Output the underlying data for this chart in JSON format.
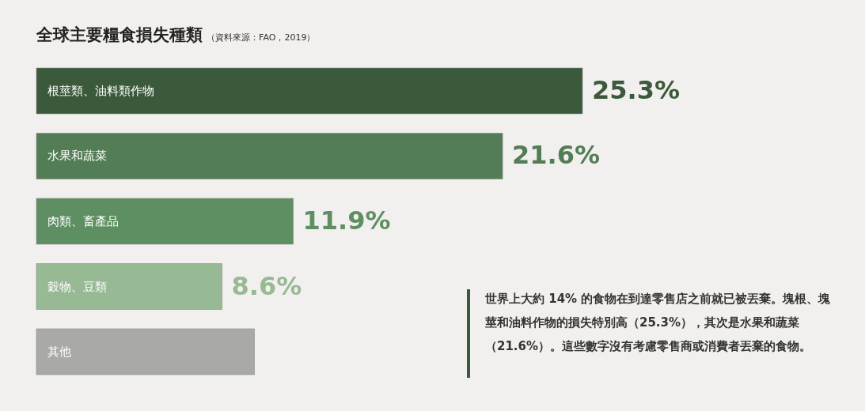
{
  "chart_data": {
    "type": "bar",
    "orientation": "horizontal",
    "title": "全球主要糧食損失種類",
    "subtitle": "（資料來源：FAO，2019）",
    "categories": [
      "根莖類、油料類作物",
      "水果和蔬菜",
      "肉類、畜產品",
      "穀物、豆類",
      "其他"
    ],
    "values": [
      25.3,
      21.6,
      11.9,
      8.6,
      10.1
    ],
    "value_labels": [
      "25.3%",
      "21.6%",
      "11.9%",
      "8.6%",
      null
    ],
    "colors": [
      "#3b5a3b",
      "#537d55",
      "#5e8f62",
      "#97b993",
      "#a9a9a8"
    ],
    "annotations": [
      "世界上大約 14% 的食物在到達零售店之前就已被丟棄。塊根、塊莖和油料作物的損失特別高（25.3%），其次是水果和蔬菜（21.6%）。這些數字沒有考慮零售商或消費者丟棄的食物。"
    ]
  }
}
